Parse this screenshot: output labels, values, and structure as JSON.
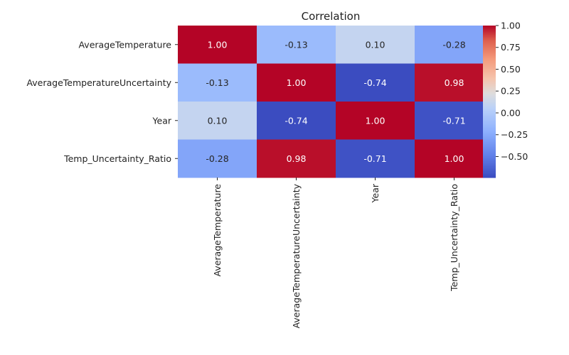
{
  "chart_data": {
    "type": "heatmap",
    "title": "Correlation",
    "xlabel": "",
    "ylabel": "",
    "row_labels": [
      "AverageTemperature",
      "AverageTemperatureUncertainty",
      "Year",
      "Temp_Uncertainty_Ratio"
    ],
    "col_labels": [
      "AverageTemperature",
      "AverageTemperatureUncertainty",
      "Year",
      "Temp_Uncertainty_Ratio"
    ],
    "values": [
      [
        1.0,
        -0.13,
        0.1,
        -0.28
      ],
      [
        -0.13,
        1.0,
        -0.74,
        0.98
      ],
      [
        0.1,
        -0.74,
        1.0,
        -0.71
      ],
      [
        -0.28,
        0.98,
        -0.71,
        1.0
      ]
    ],
    "annotations": [
      [
        "1.00",
        "-0.13",
        "0.10",
        "-0.28"
      ],
      [
        "-0.13",
        "1.00",
        "-0.74",
        "0.98"
      ],
      [
        "0.10",
        "-0.74",
        "1.00",
        "-0.71"
      ],
      [
        "-0.28",
        "0.98",
        "-0.71",
        "1.00"
      ]
    ],
    "colormap": "coolwarm",
    "vmin": -0.74,
    "vmax": 1.0,
    "colorbar": {
      "ticks": [
        1.0,
        0.75,
        0.5,
        0.25,
        0.0,
        -0.25,
        -0.5
      ],
      "tick_labels": [
        "1.00",
        "0.75",
        "0.50",
        "0.25",
        "0.00",
        "−0.25",
        "−0.50"
      ]
    },
    "grid": false,
    "legend": "colorbar-right"
  }
}
